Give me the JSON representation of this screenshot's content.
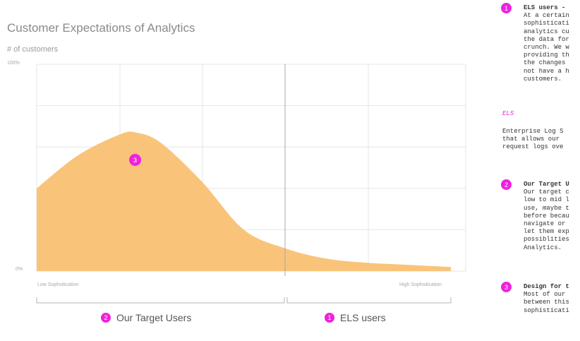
{
  "title": "Customer Expectations of Analytics",
  "y_axis_label": "# of customers",
  "y_ticks": [
    "100%",
    "0%"
  ],
  "x_ticks": [
    "Low Sophsitication",
    "High Sophsitication"
  ],
  "segments": [
    {
      "badge": "2",
      "label": "Our Target Users"
    },
    {
      "badge": "1",
      "label": "ELS users"
    }
  ],
  "peak_badge": "3",
  "accent_color": "#ee22dd",
  "fill_color": "#f9c47a",
  "chart_data": {
    "type": "area",
    "xlabel": "",
    "ylabel": "# of customers",
    "x": [
      0,
      0.1,
      0.2,
      0.24,
      0.3,
      0.4,
      0.5,
      0.6,
      0.7,
      0.8,
      0.9,
      1.0
    ],
    "values": [
      40,
      56,
      66,
      67,
      62,
      43,
      20,
      11,
      6,
      4,
      3,
      2
    ],
    "ylim": [
      0,
      100
    ]
  },
  "notes": {
    "n1": {
      "badge": "1",
      "head": "ELS users -",
      "lines": [
        "At a certain",
        "sophisticati",
        "analytics cu",
        "the data for",
        "crunch. We w",
        "providing th",
        "the changes",
        "not have a h",
        "customers."
      ]
    },
    "els_term": "ELS",
    "els_def_lines": [
      "Enterprise Log S",
      "that allows our",
      "request logs ove"
    ],
    "n2": {
      "badge": "2",
      "head": "Our Target U",
      "lines": [
        "Our target c",
        "low to mid l",
        "use, maybe t",
        "before becau",
        "navigate or",
        "let them exp",
        "possiblities",
        "Analytics."
      ]
    },
    "n3": {
      "badge": "3",
      "head": "Design for t",
      "lines": [
        "Most of our",
        "between this",
        "sophisticati"
      ]
    }
  }
}
